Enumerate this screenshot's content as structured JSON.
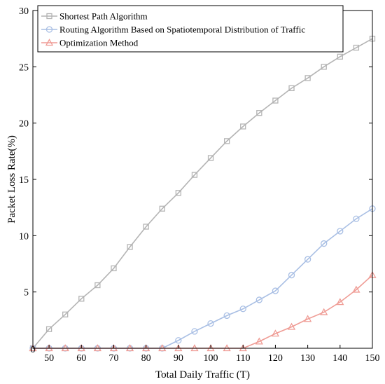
{
  "chart_data": {
    "type": "line",
    "title": "",
    "xlabel": "Total Daily Traffic (T)",
    "ylabel": "Packet Loss Rate(%)",
    "xlim": [
      45,
      150
    ],
    "ylim": [
      0,
      30
    ],
    "xticks": [
      50,
      60,
      70,
      80,
      90,
      100,
      110,
      120,
      130,
      140,
      150
    ],
    "yticks": [
      0,
      5,
      10,
      15,
      20,
      25,
      30
    ],
    "x0_label": "0",
    "grid": false,
    "legend_position": "top-left",
    "x": [
      45,
      50,
      55,
      60,
      65,
      70,
      75,
      80,
      85,
      90,
      95,
      100,
      105,
      110,
      115,
      120,
      125,
      130,
      135,
      140,
      145,
      150
    ],
    "series": [
      {
        "name": "Shortest Path Algorithm",
        "color": "#b4b4b4",
        "marker": "square",
        "values": [
          0,
          1.7,
          3.0,
          4.4,
          5.6,
          7.1,
          9.0,
          10.8,
          12.4,
          13.8,
          15.4,
          16.9,
          18.4,
          19.7,
          20.9,
          22.0,
          23.1,
          24.0,
          25.0,
          25.9,
          26.7,
          27.5
        ]
      },
      {
        "name": "Routing Algorithm Based on Spatiotemporal Distribution of Traffic",
        "color": "#a9bfe4",
        "marker": "circle",
        "values": [
          0,
          0,
          0,
          0,
          0,
          0,
          0,
          0,
          0,
          0.7,
          1.5,
          2.2,
          2.9,
          3.5,
          4.3,
          5.1,
          6.5,
          7.9,
          9.3,
          10.4,
          11.5,
          12.4
        ]
      },
      {
        "name": "Optimization Method",
        "color": "#ef9c95",
        "marker": "triangle",
        "values": [
          0,
          0,
          0,
          0,
          0,
          0,
          0,
          0,
          0,
          0,
          0,
          0,
          0,
          0,
          0.6,
          1.3,
          1.9,
          2.6,
          3.2,
          4.1,
          5.2,
          6.5
        ]
      }
    ]
  }
}
